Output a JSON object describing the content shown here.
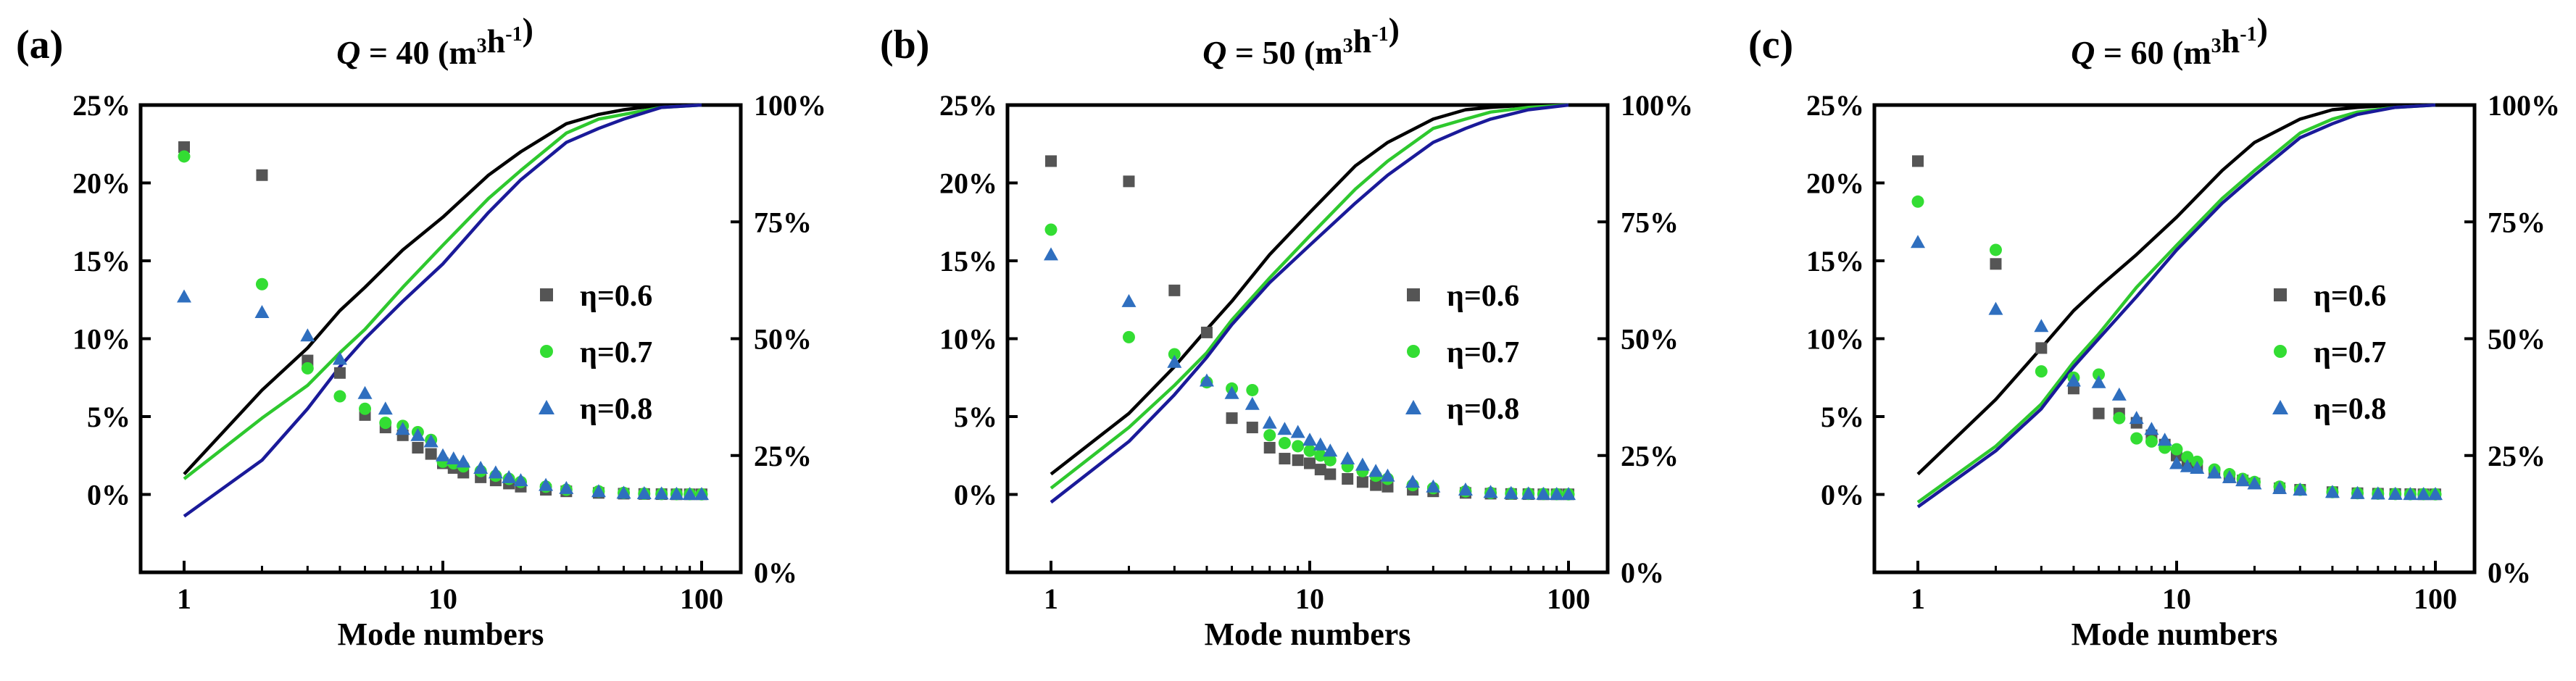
{
  "figure": {
    "x_label": "Mode numbers",
    "x_ticks": [
      1,
      10,
      100
    ],
    "x_tick_labels": [
      "1",
      "10",
      "100"
    ],
    "y_left_ticks": [
      0,
      5,
      10,
      15,
      20,
      25
    ],
    "y_left_tick_labels": [
      "0%",
      "5%",
      "10%",
      "15%",
      "20%",
      "25%"
    ],
    "y_right_ticks": [
      0,
      25,
      50,
      75,
      100
    ],
    "y_right_tick_labels": [
      "0%",
      "25%",
      "50%",
      "75%",
      "100%"
    ],
    "colors": {
      "eta06": "#555555",
      "eta07": "#33dd33",
      "eta08": "#2f6fbf",
      "cum06": "#000000",
      "cum07": "#2ec82e",
      "cum08": "#1a1a99"
    }
  },
  "chart_data": [
    {
      "type": "scatter",
      "panel_label": "(a)",
      "title_var": "Q",
      "title_rest": " = 40 (m",
      "title_sup1": "3",
      "title_mid": "h",
      "title_sup2": "-1",
      "title_end": ")",
      "xlabel": "Mode numbers",
      "xscale": "log",
      "xlim": [
        1,
        100
      ],
      "ylim_left": [
        -5,
        25
      ],
      "ylim_right": [
        0,
        100
      ],
      "legend_position": "center-right",
      "legend": [
        "η=0.6",
        "η=0.7",
        "η=0.8"
      ],
      "scatter_series": [
        {
          "name": "η=0.6",
          "key": "eta06",
          "marker": "square",
          "x": [
            1,
            2,
            3,
            4,
            5,
            6,
            7,
            8,
            9,
            10,
            11,
            12,
            14,
            16,
            18,
            20,
            25,
            30,
            40,
            50,
            60,
            70,
            80,
            90,
            100
          ],
          "y": [
            22.3,
            20.5,
            8.6,
            7.8,
            5.1,
            4.3,
            3.8,
            3.0,
            2.6,
            2.0,
            1.7,
            1.4,
            1.1,
            0.9,
            0.7,
            0.5,
            0.3,
            0.2,
            0.1,
            0.05,
            0.03,
            0.02,
            0.01,
            0.01,
            0.01
          ]
        },
        {
          "name": "η=0.7",
          "key": "eta07",
          "marker": "circle",
          "x": [
            1,
            2,
            3,
            4,
            5,
            6,
            7,
            8,
            9,
            10,
            11,
            12,
            14,
            16,
            18,
            20,
            25,
            30,
            40,
            50,
            60,
            70,
            80,
            90,
            100
          ],
          "y": [
            21.7,
            13.5,
            8.1,
            6.3,
            5.5,
            4.6,
            4.4,
            4.0,
            3.5,
            2.1,
            2.0,
            1.8,
            1.5,
            1.2,
            1.0,
            0.8,
            0.5,
            0.3,
            0.2,
            0.1,
            0.05,
            0.03,
            0.02,
            0.02,
            0.01
          ]
        },
        {
          "name": "η=0.8",
          "key": "eta08",
          "marker": "triangle",
          "x": [
            1,
            2,
            3,
            4,
            5,
            6,
            7,
            8,
            9,
            10,
            11,
            12,
            14,
            16,
            18,
            20,
            25,
            30,
            40,
            50,
            60,
            70,
            80,
            90,
            100
          ],
          "y": [
            12.7,
            11.7,
            10.2,
            8.7,
            6.5,
            5.5,
            4.2,
            3.8,
            3.4,
            2.5,
            2.3,
            2.1,
            1.7,
            1.4,
            1.1,
            0.9,
            0.6,
            0.4,
            0.2,
            0.1,
            0.07,
            0.05,
            0.03,
            0.02,
            0.02
          ]
        }
      ],
      "cumulative_series": [
        {
          "name": "η=0.6 cumulative",
          "key": "cum06",
          "x": [
            1,
            2,
            3,
            4,
            5,
            7,
            10,
            15,
            20,
            30,
            40,
            50,
            70,
            100
          ],
          "y": [
            21,
            39,
            48,
            56,
            61,
            69,
            76,
            85,
            90,
            96,
            98,
            99,
            100,
            100
          ]
        },
        {
          "name": "η=0.7 cumulative",
          "key": "cum07",
          "x": [
            1,
            2,
            3,
            4,
            5,
            7,
            10,
            15,
            20,
            30,
            40,
            50,
            70,
            100
          ],
          "y": [
            20,
            33,
            40,
            47,
            52,
            61,
            70,
            80,
            86,
            94,
            97,
            98,
            99.5,
            100
          ]
        },
        {
          "name": "η=0.8 cumulative",
          "key": "cum08",
          "x": [
            1,
            2,
            3,
            4,
            5,
            7,
            10,
            15,
            20,
            30,
            40,
            50,
            70,
            100
          ],
          "y": [
            12,
            24,
            35,
            44,
            50,
            58,
            66,
            77,
            84,
            92,
            95,
            97,
            99.5,
            100
          ]
        }
      ]
    },
    {
      "type": "scatter",
      "panel_label": "(b)",
      "title_var": "Q",
      "title_rest": " = 50 (m",
      "title_sup1": "3",
      "title_mid": "h",
      "title_sup2": "-1",
      "title_end": ")",
      "xlabel": "Mode numbers",
      "xscale": "log",
      "xlim": [
        1,
        100
      ],
      "ylim_left": [
        -5,
        25
      ],
      "ylim_right": [
        0,
        100
      ],
      "legend_position": "center-right",
      "legend": [
        "η=0.6",
        "η=0.7",
        "η=0.8"
      ],
      "scatter_series": [
        {
          "name": "η=0.6",
          "key": "eta06",
          "marker": "square",
          "x": [
            1,
            2,
            3,
            4,
            5,
            6,
            7,
            8,
            9,
            10,
            11,
            12,
            14,
            16,
            18,
            20,
            25,
            30,
            40,
            50,
            60,
            70,
            80,
            90,
            100
          ],
          "y": [
            21.4,
            20.1,
            13.1,
            10.4,
            4.9,
            4.3,
            3.0,
            2.3,
            2.2,
            2.0,
            1.6,
            1.3,
            1.0,
            0.8,
            0.6,
            0.5,
            0.3,
            0.2,
            0.1,
            0.05,
            0.03,
            0.02,
            0.01,
            0.01,
            0.01
          ]
        },
        {
          "name": "η=0.7",
          "key": "eta07",
          "marker": "circle",
          "x": [
            1,
            2,
            3,
            4,
            5,
            6,
            7,
            8,
            9,
            10,
            11,
            12,
            14,
            16,
            18,
            20,
            25,
            30,
            40,
            50,
            60,
            70,
            80,
            90,
            100
          ],
          "y": [
            17.0,
            10.1,
            9.0,
            7.2,
            6.8,
            6.7,
            3.8,
            3.3,
            3.1,
            2.8,
            2.5,
            2.2,
            1.8,
            1.5,
            1.2,
            1.0,
            0.6,
            0.4,
            0.2,
            0.1,
            0.06,
            0.04,
            0.03,
            0.02,
            0.01
          ]
        },
        {
          "name": "η=0.8",
          "key": "eta08",
          "marker": "triangle",
          "x": [
            1,
            2,
            3,
            4,
            5,
            6,
            7,
            8,
            9,
            10,
            11,
            12,
            14,
            16,
            18,
            20,
            25,
            30,
            40,
            50,
            60,
            70,
            80,
            90,
            100
          ],
          "y": [
            15.4,
            12.4,
            8.5,
            7.3,
            6.5,
            5.8,
            4.6,
            4.2,
            4.0,
            3.5,
            3.2,
            2.8,
            2.3,
            1.9,
            1.5,
            1.2,
            0.8,
            0.5,
            0.3,
            0.15,
            0.08,
            0.05,
            0.03,
            0.02,
            0.02
          ]
        }
      ],
      "cumulative_series": [
        {
          "name": "η=0.6 cumulative",
          "key": "cum06",
          "x": [
            1,
            2,
            3,
            4,
            5,
            7,
            10,
            15,
            20,
            30,
            40,
            50,
            70,
            100
          ],
          "y": [
            21,
            34,
            44,
            52,
            58,
            68,
            77,
            87,
            92,
            97,
            99,
            99.5,
            100,
            100
          ]
        },
        {
          "name": "η=0.7 cumulative",
          "key": "cum07",
          "x": [
            1,
            2,
            3,
            4,
            5,
            7,
            10,
            15,
            20,
            30,
            40,
            50,
            70,
            100
          ],
          "y": [
            18,
            31,
            40,
            47,
            54,
            63,
            72,
            82,
            88,
            95,
            97,
            98.5,
            99.5,
            100
          ]
        },
        {
          "name": "η=0.8 cumulative",
          "key": "cum08",
          "x": [
            1,
            2,
            3,
            4,
            5,
            7,
            10,
            15,
            20,
            30,
            40,
            50,
            70,
            100
          ],
          "y": [
            15,
            28,
            38,
            46,
            53,
            62,
            70,
            79,
            85,
            92,
            95,
            97,
            99,
            100
          ]
        }
      ]
    },
    {
      "type": "scatter",
      "panel_label": "(c)",
      "title_var": "Q",
      "title_rest": " = 60 (m",
      "title_sup1": "3",
      "title_mid": "h",
      "title_sup2": "-1",
      "title_end": ")",
      "xlabel": "Mode numbers",
      "xscale": "log",
      "xlim": [
        1,
        100
      ],
      "ylim_left": [
        -5,
        25
      ],
      "ylim_right": [
        0,
        100
      ],
      "legend_position": "center-right",
      "legend": [
        "η=0.6",
        "η=0.7",
        "η=0.8"
      ],
      "scatter_series": [
        {
          "name": "η=0.6",
          "key": "eta06",
          "marker": "square",
          "x": [
            1,
            2,
            3,
            4,
            5,
            6,
            7,
            8,
            9,
            10,
            11,
            12,
            14,
            16,
            18,
            20,
            25,
            30,
            40,
            50,
            60,
            70,
            80,
            90,
            100
          ],
          "y": [
            21.4,
            14.8,
            9.4,
            6.8,
            5.2,
            5.2,
            4.6,
            3.8,
            3.2,
            2.5,
            2.1,
            1.8,
            1.4,
            1.1,
            0.9,
            0.7,
            0.4,
            0.3,
            0.15,
            0.08,
            0.05,
            0.03,
            0.02,
            0.01,
            0.01
          ]
        },
        {
          "name": "η=0.7",
          "key": "eta07",
          "marker": "circle",
          "x": [
            1,
            2,
            3,
            4,
            5,
            6,
            7,
            8,
            9,
            10,
            11,
            12,
            14,
            16,
            18,
            20,
            25,
            30,
            40,
            50,
            60,
            70,
            80,
            90,
            100
          ],
          "y": [
            18.8,
            15.7,
            7.9,
            7.5,
            7.7,
            4.9,
            3.6,
            3.4,
            3.0,
            2.9,
            2.4,
            2.1,
            1.6,
            1.3,
            1.0,
            0.8,
            0.5,
            0.3,
            0.15,
            0.08,
            0.05,
            0.03,
            0.02,
            0.02,
            0.01
          ]
        },
        {
          "name": "η=0.8",
          "key": "eta08",
          "marker": "triangle",
          "x": [
            1,
            2,
            3,
            4,
            5,
            6,
            7,
            8,
            9,
            10,
            11,
            12,
            14,
            16,
            18,
            20,
            25,
            30,
            40,
            50,
            60,
            70,
            80,
            90,
            100
          ],
          "y": [
            16.2,
            11.9,
            10.8,
            7.3,
            7.2,
            6.4,
            4.9,
            4.2,
            3.5,
            2.0,
            1.8,
            1.7,
            1.4,
            1.1,
            0.9,
            0.7,
            0.4,
            0.3,
            0.15,
            0.08,
            0.05,
            0.03,
            0.02,
            0.02,
            0.02
          ]
        }
      ],
      "cumulative_series": [
        {
          "name": "η=0.6 cumulative",
          "key": "cum06",
          "x": [
            1,
            2,
            3,
            4,
            5,
            7,
            10,
            15,
            20,
            30,
            40,
            50,
            70,
            100
          ],
          "y": [
            21,
            37,
            48,
            56,
            61,
            68,
            76,
            86,
            92,
            97,
            99,
            99.5,
            100,
            100
          ]
        },
        {
          "name": "η=0.7 cumulative",
          "key": "cum07",
          "x": [
            1,
            2,
            3,
            4,
            5,
            7,
            10,
            15,
            20,
            30,
            40,
            50,
            70,
            100
          ],
          "y": [
            15,
            27,
            36,
            45,
            51,
            61,
            70,
            80,
            86,
            94,
            97,
            98.5,
            99.5,
            100
          ]
        },
        {
          "name": "η=0.8 cumulative",
          "key": "cum08",
          "x": [
            1,
            2,
            3,
            4,
            5,
            7,
            10,
            15,
            20,
            30,
            40,
            50,
            70,
            100
          ],
          "y": [
            14,
            26,
            35,
            44,
            50,
            59,
            69,
            79,
            85,
            93,
            96,
            98,
            99.5,
            100
          ]
        }
      ]
    }
  ]
}
